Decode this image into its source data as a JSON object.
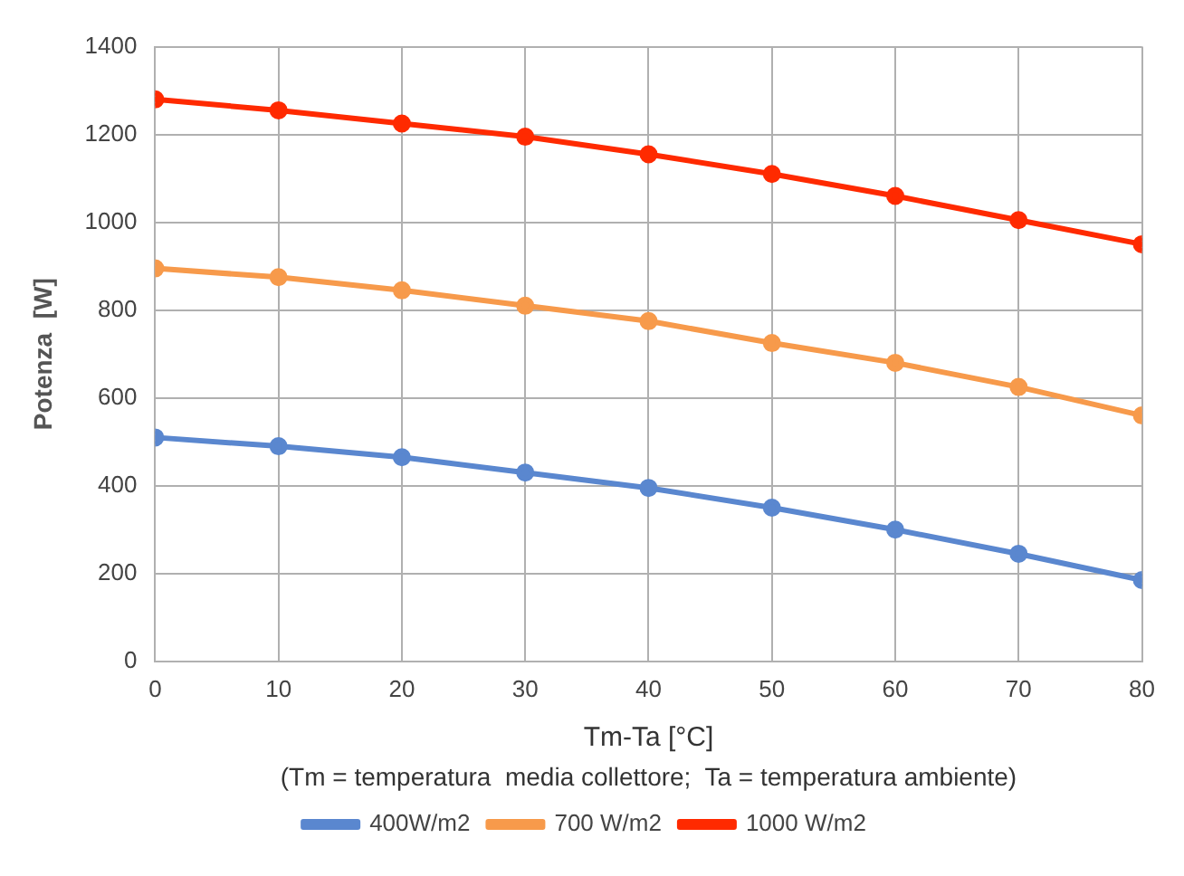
{
  "chart_data": {
    "type": "line",
    "xlabel": "Tm-Ta [°C]",
    "ylabel": "Potenza  [W]",
    "annotations": [
      "(Tm = temperatura  media collettore;  Ta = temperatura ambiente)"
    ],
    "x": [
      0,
      10,
      20,
      30,
      40,
      50,
      60,
      70,
      80
    ],
    "series": [
      {
        "name": "400W/m2",
        "color": "#5a87cf",
        "values": [
          510,
          490,
          465,
          430,
          395,
          350,
          300,
          245,
          185
        ]
      },
      {
        "name": "700 W/m2",
        "color": "#f79a4b",
        "values": [
          895,
          875,
          845,
          810,
          775,
          725,
          680,
          625,
          560
        ]
      },
      {
        "name": "1000 W/m2",
        "color": "#ff2a00",
        "values": [
          1280,
          1255,
          1225,
          1195,
          1155,
          1110,
          1060,
          1005,
          950
        ]
      }
    ],
    "xlim": [
      0,
      80
    ],
    "xticks": [
      0,
      10,
      20,
      30,
      40,
      50,
      60,
      70,
      80
    ],
    "ylim": [
      0,
      1400
    ],
    "yticks": [
      0,
      200,
      400,
      600,
      800,
      1000,
      1200,
      1400
    ],
    "grid": true,
    "legend": "bottom",
    "marker": "circle",
    "line_style": "solid"
  }
}
